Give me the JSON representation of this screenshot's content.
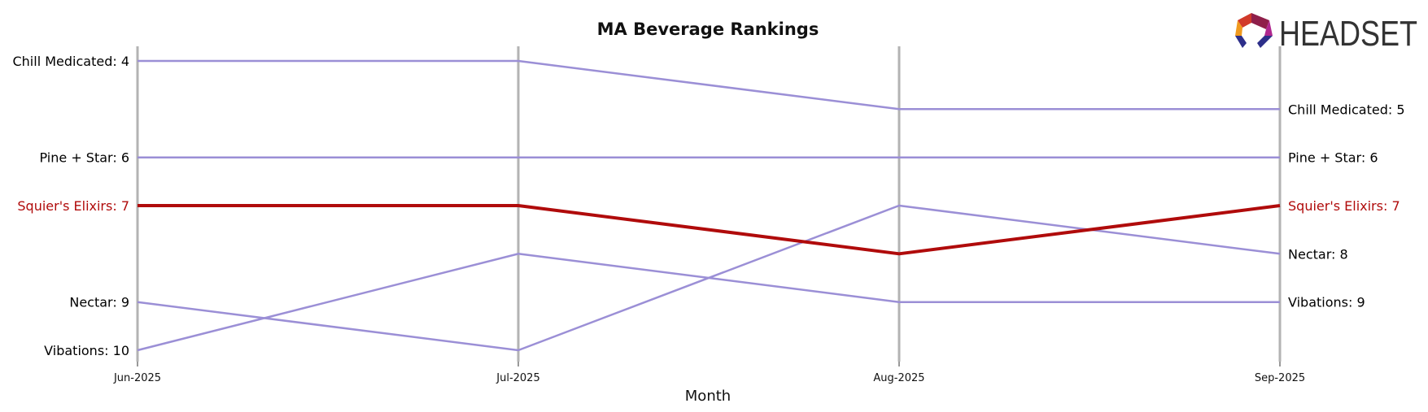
{
  "chart_data": {
    "type": "line",
    "title": "MA Beverage Rankings",
    "xlabel": "Month",
    "ylabel": "",
    "categories": [
      "Jun-2025",
      "Jul-2025",
      "Aug-2025",
      "Sep-2025"
    ],
    "y_inverted": true,
    "ylim": [
      10,
      4
    ],
    "grid": false,
    "series": [
      {
        "name": "Chill Medicated",
        "values": [
          4,
          4,
          5,
          5
        ],
        "color": "#9b8fd6",
        "highlight": false
      },
      {
        "name": "Pine + Star",
        "values": [
          6,
          6,
          6,
          6
        ],
        "color": "#9b8fd6",
        "highlight": false
      },
      {
        "name": "Squier's Elixirs",
        "values": [
          7,
          7,
          8,
          7
        ],
        "color": "#b00b0b",
        "highlight": true
      },
      {
        "name": "Nectar",
        "values": [
          9,
          10,
          7,
          8
        ],
        "color": "#9b8fd6",
        "highlight": false
      },
      {
        "name": "Vibations",
        "values": [
          10,
          8,
          9,
          9
        ],
        "color": "#9b8fd6",
        "highlight": false
      }
    ],
    "start_labels": [
      {
        "series": "Chill Medicated",
        "text": "Chill Medicated: 4"
      },
      {
        "series": "Pine + Star",
        "text": "Pine + Star: 6"
      },
      {
        "series": "Squier's Elixirs",
        "text": "Squier's Elixirs: 7"
      },
      {
        "series": "Nectar",
        "text": "Nectar: 9"
      },
      {
        "series": "Vibations",
        "text": "Vibations: 10"
      }
    ],
    "end_labels": [
      {
        "series": "Chill Medicated",
        "text": "Chill Medicated: 5"
      },
      {
        "series": "Pine + Star",
        "text": "Pine + Star: 6"
      },
      {
        "series": "Squier's Elixirs",
        "text": "Squier's Elixirs: 7"
      },
      {
        "series": "Nectar",
        "text": "Nectar: 8"
      },
      {
        "series": "Vibations",
        "text": "Vibations: 9"
      }
    ]
  },
  "logo": {
    "text": "HEADSET",
    "text_color": "#333333"
  }
}
